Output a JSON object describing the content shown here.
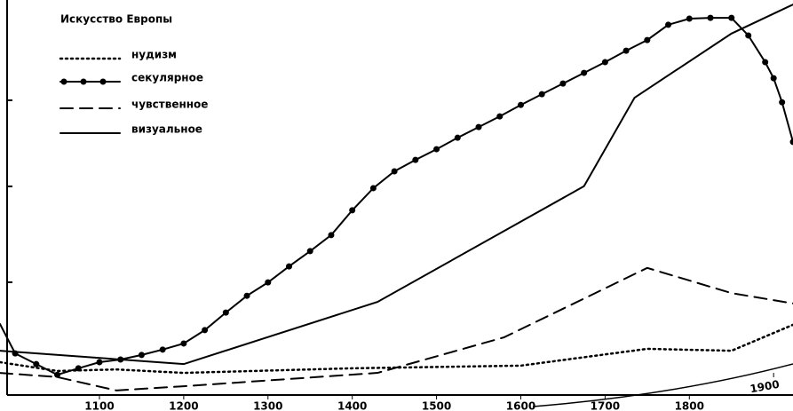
{
  "chart_data": {
    "type": "line",
    "title": "Искусство Европы",
    "xlim": [
      982,
      1923
    ],
    "ylim": [
      0,
      105
    ],
    "xticks": [
      1100,
      1200,
      1300,
      1400,
      1500,
      1600,
      1700,
      1800,
      1900
    ],
    "series": [
      {
        "name": "нудизм",
        "color": "#000000",
        "dash": "dotted",
        "x": [
          982,
          1050,
          1120,
          1200,
          1400,
          1600,
          1750,
          1850,
          1923
        ],
        "values": [
          8.6,
          6.3,
          6.7,
          5.8,
          7.0,
          7.7,
          12.1,
          11.6,
          18.4
        ]
      },
      {
        "name": "секулярное",
        "color": "#000000",
        "dash": "solid",
        "markers": true,
        "x": [
          982,
          1000,
          1025,
          1050,
          1075,
          1100,
          1125,
          1150,
          1175,
          1200,
          1225,
          1250,
          1275,
          1300,
          1325,
          1350,
          1375,
          1400,
          1425,
          1450,
          1475,
          1500,
          1525,
          1550,
          1575,
          1600,
          1625,
          1650,
          1675,
          1700,
          1725,
          1750,
          1775,
          1800,
          1825,
          1850,
          1870,
          1890,
          1900,
          1910,
          1923
        ],
        "values": [
          18.6,
          10.9,
          8.1,
          5.3,
          7.0,
          8.6,
          9.3,
          10.5,
          11.9,
          13.5,
          17.0,
          21.6,
          26.0,
          29.5,
          33.7,
          37.7,
          41.9,
          48.4,
          54.2,
          58.6,
          61.6,
          64.4,
          67.4,
          70.2,
          73.0,
          76.0,
          78.8,
          81.6,
          84.4,
          87.2,
          90.2,
          93.0,
          97.0,
          98.6,
          98.8,
          98.8,
          94.2,
          87.2,
          83.0,
          76.7,
          66.3
        ]
      },
      {
        "name": "чувственное",
        "color": "#000000",
        "dash": "dashed",
        "x": [
          982,
          1050,
          1120,
          1200,
          1430,
          1580,
          1750,
          1850,
          1923
        ],
        "values": [
          5.8,
          4.7,
          1.2,
          2.3,
          5.8,
          15.1,
          33.3,
          26.7,
          24.0
        ]
      },
      {
        "name": "визуальное",
        "color": "#000000",
        "dash": "solid",
        "x": [
          982,
          1200,
          1430,
          1675,
          1735,
          1850,
          1923
        ],
        "values": [
          11.6,
          8.1,
          24.4,
          54.7,
          77.9,
          94.7,
          102.3
        ]
      }
    ]
  }
}
